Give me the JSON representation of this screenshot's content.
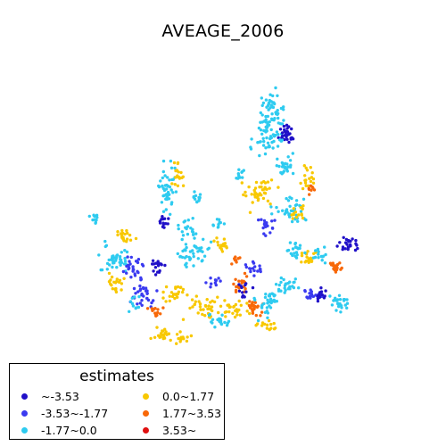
{
  "title": "AVEAGE_2006",
  "legend": {
    "title": "estimates",
    "items": [
      {
        "label": "~-3.53",
        "color": "#2010c8"
      },
      {
        "label": "-3.53~-1.77",
        "color": "#3a3af0"
      },
      {
        "label": "-1.77~0.0",
        "color": "#2ecbf0"
      },
      {
        "label": "0.0~1.77",
        "color": "#f8c800"
      },
      {
        "label": "1.77~3.53",
        "color": "#f86808"
      },
      {
        "label": "3.53~",
        "color": "#e01010"
      }
    ]
  }
}
